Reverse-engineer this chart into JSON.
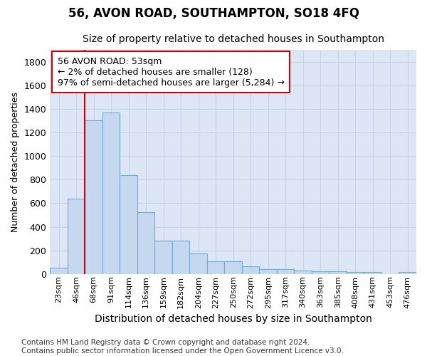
{
  "title1": "56, AVON ROAD, SOUTHAMPTON, SO18 4FQ",
  "title2": "Size of property relative to detached houses in Southampton",
  "xlabel": "Distribution of detached houses by size in Southampton",
  "ylabel": "Number of detached properties",
  "categories": [
    "23sqm",
    "46sqm",
    "68sqm",
    "91sqm",
    "114sqm",
    "136sqm",
    "159sqm",
    "182sqm",
    "204sqm",
    "227sqm",
    "250sqm",
    "272sqm",
    "295sqm",
    "317sqm",
    "340sqm",
    "363sqm",
    "385sqm",
    "408sqm",
    "431sqm",
    "453sqm",
    "476sqm"
  ],
  "values": [
    55,
    638,
    1305,
    1370,
    840,
    525,
    280,
    280,
    175,
    105,
    105,
    68,
    40,
    40,
    30,
    20,
    20,
    15,
    15,
    0,
    15
  ],
  "bar_color": "#c5d8f0",
  "bar_edge_color": "#6baed6",
  "grid_color": "#c8d4e8",
  "background_color": "#dce6f5",
  "vline_color": "#cc0000",
  "vline_x": 1.5,
  "annotation_line1": "56 AVON ROAD: 53sqm",
  "annotation_line2": "← 2% of detached houses are smaller (128)",
  "annotation_line3": "97% of semi-detached houses are larger (5,284) →",
  "annotation_box_facecolor": "white",
  "annotation_box_edgecolor": "#cc0000",
  "ylim": [
    0,
    1900
  ],
  "yticks": [
    0,
    200,
    400,
    600,
    800,
    1000,
    1200,
    1400,
    1600,
    1800
  ],
  "footer1": "Contains HM Land Registry data © Crown copyright and database right 2024.",
  "footer2": "Contains public sector information licensed under the Open Government Licence v3.0.",
  "title1_fontsize": 12,
  "title2_fontsize": 10,
  "xlabel_fontsize": 10,
  "ylabel_fontsize": 9,
  "ytick_fontsize": 9,
  "xtick_fontsize": 8,
  "annotation_fontsize": 9,
  "footer_fontsize": 7.5
}
